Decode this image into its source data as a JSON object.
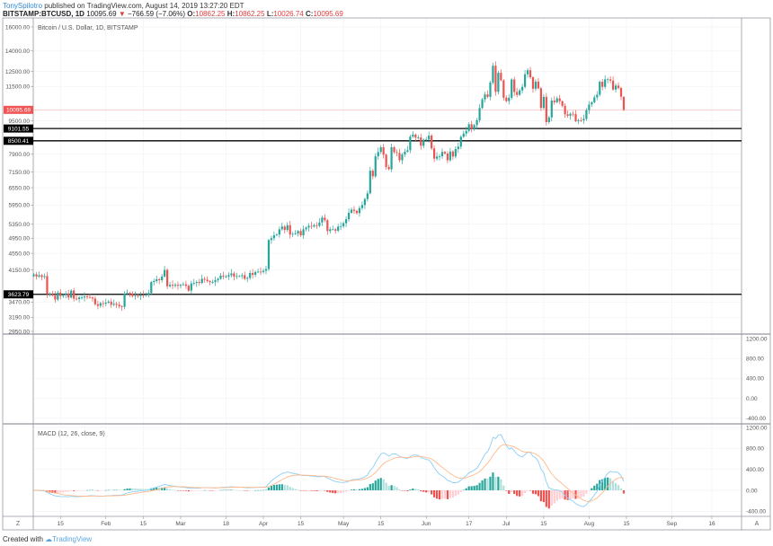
{
  "header": {
    "user": "TonySpilotro",
    "published": " published on TradingView.com, August 14, 2019 13:27:20 EDT",
    "symbol": "BITSTAMP:BTCUSD, 1D",
    "last": "10095.69",
    "change": "−766.59 (−7.06%)",
    "o_label": "O:",
    "o": "10862.25",
    "h_label": "H:",
    "h": "10862.25",
    "l_label": "L:",
    "l": "10026.74",
    "c_label": "C:",
    "c": "10095.69",
    "down_color": "#e03c3c"
  },
  "legend": {
    "main": "Bitcoin / U.S. Dollar, 1D, BITSTAMP",
    "macd": "MACD (12, 26, close, 9)"
  },
  "footer": {
    "created": "Created with",
    "brand": "TradingView"
  },
  "axis_buttons": {
    "left": "Z",
    "right": "A"
  },
  "colors": {
    "up": "#26a69a",
    "down": "#ef5350",
    "hist_up_strong": "#26a69a",
    "hist_up_weak": "#b2dfdb",
    "hist_down_strong": "#ef5350",
    "hist_down_weak": "#ffcdd2",
    "macd_line": "#8ccff5",
    "signal_line": "#ffb98a",
    "level_line": "#000000",
    "last_price": "#f05454"
  },
  "chart_data": {
    "type": "candlestick",
    "scale": "log",
    "x_start": "2019-01-05",
    "ylim": [
      2950,
      16000
    ],
    "grid": true,
    "price_ticks": [
      "16000.00",
      "14000.00",
      "12500.00",
      "11500.00",
      "9500.00",
      "7900.00",
      "7150.00",
      "6550.00",
      "5950.00",
      "5350.00",
      "4950.00",
      "4550.00",
      "4150.00",
      "3470.00",
      "3190.00",
      "2950.00"
    ],
    "levels": [
      {
        "value": 9101.55,
        "label": "9101.55"
      },
      {
        "value": 8500.41,
        "label": "8500.41"
      },
      {
        "value": 3623.79,
        "label": "3623.79"
      }
    ],
    "last_price": {
      "value": 10095.69,
      "label": "10095.69"
    },
    "last_bar": {
      "open": 10862.25,
      "high": 10862.25,
      "low": 10026.74,
      "close": 10095.69
    },
    "time_ticks": [
      {
        "label": "15",
        "date": "2019-01-15"
      },
      {
        "label": "Feb",
        "date": "2019-02-01"
      },
      {
        "label": "15",
        "date": "2019-02-15"
      },
      {
        "label": "Mar",
        "date": "2019-03-01"
      },
      {
        "label": "18",
        "date": "2019-03-18"
      },
      {
        "label": "Apr",
        "date": "2019-04-01"
      },
      {
        "label": "15",
        "date": "2019-04-15"
      },
      {
        "label": "May",
        "date": "2019-05-01"
      },
      {
        "label": "15",
        "date": "2019-05-15"
      },
      {
        "label": "Jun",
        "date": "2019-06-01"
      },
      {
        "label": "17",
        "date": "2019-06-17"
      },
      {
        "label": "Jul",
        "date": "2019-07-01"
      },
      {
        "label": "15",
        "date": "2019-07-15"
      },
      {
        "label": "Aug",
        "date": "2019-08-01"
      },
      {
        "label": "15",
        "date": "2019-08-15"
      },
      {
        "label": "Sep",
        "date": "2019-09-01"
      },
      {
        "label": "16",
        "date": "2019-09-16"
      }
    ],
    "closes": [
      4050,
      4000,
      4030,
      3990,
      4010,
      3630,
      3630,
      3600,
      3520,
      3660,
      3590,
      3620,
      3640,
      3560,
      3700,
      3540,
      3530,
      3560,
      3560,
      3580,
      3570,
      3560,
      3540,
      3430,
      3400,
      3450,
      3440,
      3460,
      3480,
      3420,
      3440,
      3420,
      3390,
      3380,
      3640,
      3650,
      3630,
      3590,
      3600,
      3590,
      3610,
      3600,
      3620,
      3650,
      3880,
      3900,
      3940,
      3920,
      4000,
      4150,
      3790,
      3820,
      3800,
      3820,
      3800,
      3820,
      3830,
      3800,
      3700,
      3850,
      3860,
      3880,
      3860,
      3950,
      3930,
      3900,
      3880,
      3880,
      3920,
      3950,
      4020,
      4000,
      4000,
      4030,
      4070,
      4000,
      4010,
      4010,
      4030,
      3950,
      3970,
      4080,
      4040,
      4100,
      4110,
      4100,
      4130,
      4170,
      4900,
      4950,
      5030,
      5050,
      5200,
      5280,
      5180,
      5320,
      5050,
      5070,
      5080,
      5150,
      5030,
      5200,
      5250,
      5300,
      5280,
      5320,
      5300,
      5400,
      5550,
      5470,
      5150,
      5200,
      5200,
      5160,
      5280,
      5290,
      5380,
      5500,
      5700,
      5800,
      5760,
      5690,
      5850,
      5950,
      6150,
      6350,
      7200,
      6980,
      7800,
      7990,
      8200,
      7870,
      7350,
      7260,
      8200,
      7980,
      7950,
      7630,
      7880,
      8000,
      8070,
      8700,
      8800,
      8650,
      8660,
      8270,
      8550,
      8560,
      8750,
      8150,
      7700,
      7790,
      7800,
      7990,
      7920,
      7630,
      8010,
      7790,
      8120,
      8230,
      8690,
      8850,
      8980,
      9320,
      9080,
      9280,
      9530,
      10200,
      10700,
      11000,
      10850,
      11750,
      12900,
      11160,
      12400,
      11900,
      10800,
      10600,
      10800,
      11950,
      11150,
      10970,
      11250,
      11470,
      12300,
      12580,
      12100,
      11350,
      11810,
      11380,
      10200,
      10850,
      9430,
      9680,
      10630,
      10530,
      10760,
      10590,
      10320,
      9850,
      9770,
      9880,
      9860,
      9480,
      9530,
      9520,
      9600,
      10080,
      10400,
      10530,
      10820,
      10980,
      11800,
      11470,
      11960,
      11960,
      11870,
      11300,
      11550,
      11400,
      10862.25,
      10095.69
    ],
    "indicator_pane_ticks": [
      "1200.00",
      "800.00",
      "400.00",
      "0.00",
      "-400.00"
    ],
    "macd": {
      "fast": 12,
      "slow": 26,
      "signal": 9,
      "ticks": [
        "1200.00",
        "800.00",
        "400.00",
        "0.00",
        "-400.00"
      ]
    }
  }
}
